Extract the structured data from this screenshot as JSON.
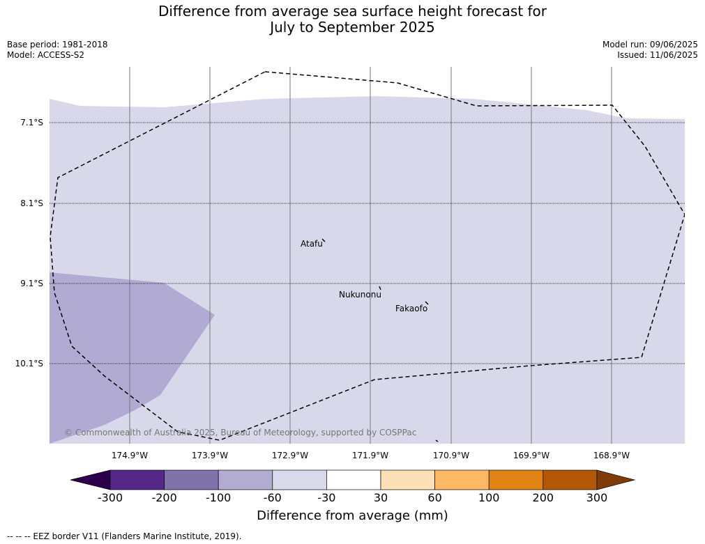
{
  "title_line1": "Difference from average sea surface height forecast for",
  "title_line2": "July to September 2025",
  "meta_left": {
    "base_period": "Base period: 1981-2018",
    "model": "Model: ACCESS-S2"
  },
  "meta_right": {
    "model_run": "Model run: 09/06/2025",
    "issued": "Issued: 11/06/2025"
  },
  "map": {
    "latitudes": [
      "7.1°S",
      "8.1°S",
      "9.1°S",
      "10.1°S"
    ],
    "longitudes": [
      "174.9°W",
      "173.9°W",
      "172.9°W",
      "171.9°W",
      "170.9°W",
      "169.9°W",
      "168.9°W"
    ],
    "places": [
      "Atafu",
      "Nukunonu",
      "Fakaofo"
    ],
    "copyright": "© Commonwealth of Australia 2025, Bureau of Meteorology, supported by COSPPac",
    "colors": {
      "class_-60_-30": "#d8d8ea",
      "class_-100_-60": "#b1abd3"
    }
  },
  "colorbar": {
    "label": "Difference from average (mm)",
    "ticks": [
      "-300",
      "-200",
      "-100",
      "-60",
      "-30",
      "30",
      "60",
      "100",
      "200",
      "300"
    ],
    "colors": [
      "#2d004b",
      "#542788",
      "#8073ac",
      "#b2abd2",
      "#d8daeb",
      "#ffffff",
      "#fee0b6",
      "#fdb863",
      "#e08214",
      "#b35806",
      "#7f3b08"
    ]
  },
  "footer": "--  --  -- EEZ border V11 (Flanders Marine Institute, 2019)."
}
